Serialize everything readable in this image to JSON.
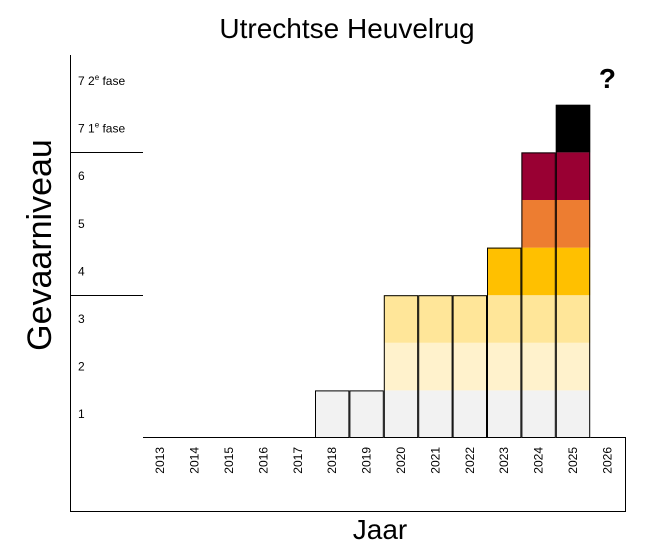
{
  "chart_data": {
    "type": "bar",
    "title": "Utrechtse Heuvelrug",
    "xlabel": "Jaar",
    "ylabel": "Gevaarniveau",
    "categories": [
      "2013",
      "2014",
      "2015",
      "2016",
      "2017",
      "2018",
      "2019",
      "2020",
      "2021",
      "2022",
      "2023",
      "2024",
      "2025",
      "2026"
    ],
    "values": [
      0,
      0,
      0,
      0,
      0,
      1,
      1,
      3,
      3,
      3,
      4,
      6,
      7,
      null
    ],
    "level_labels": [
      {
        "value": 1,
        "text": "1"
      },
      {
        "value": 2,
        "text": "2"
      },
      {
        "value": 3,
        "text": "3"
      },
      {
        "value": 4,
        "text": "4"
      },
      {
        "value": 5,
        "text": "5"
      },
      {
        "value": 6,
        "text": "6"
      },
      {
        "value": 7,
        "main": "7 1",
        "sup": "e",
        "rest": " fase"
      },
      {
        "value": 8,
        "main": "7 2",
        "sup": "e",
        "rest": " fase"
      }
    ],
    "level_colors": {
      "1": "#f2f2f2",
      "2": "#fff2cc",
      "3": "#ffe699",
      "4": "#ffc000",
      "5": "#ed7d31",
      "6": "#990033",
      "7": "#000000"
    },
    "annotations": [
      {
        "category": "2026",
        "text": "?"
      }
    ],
    "ylim": [
      0,
      8
    ],
    "grid": false,
    "legend": "none"
  }
}
